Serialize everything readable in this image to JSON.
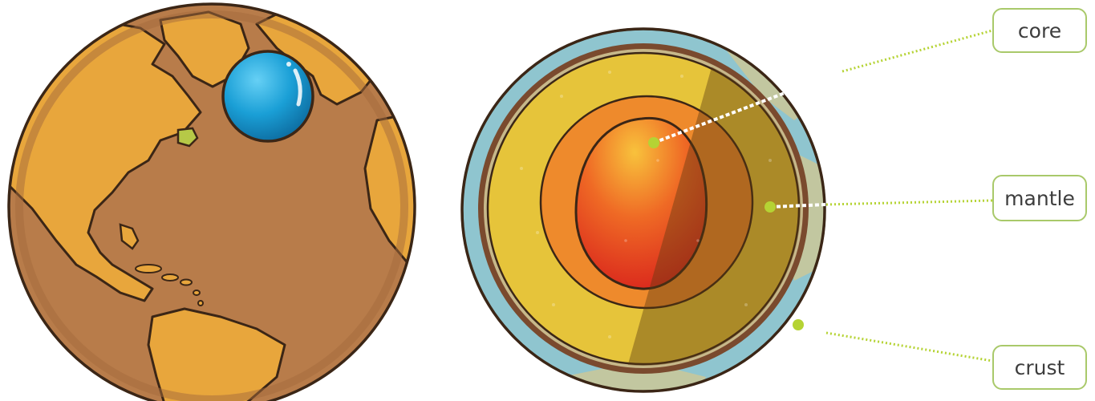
{
  "labels": {
    "core": "core",
    "mantle": "mantle",
    "crust": "crust"
  },
  "colors": {
    "label_border": "#a9c96a",
    "leader_dot": "#b5d334",
    "earth_land": "#e8a63c",
    "earth_ocean": "#b87c4a",
    "ball": "#1a9fd6",
    "crust": "#8fc5cf",
    "upper_mantle": "#e6c43a",
    "lower_mantle": "#ee8a2c",
    "core": "#e33a22"
  }
}
